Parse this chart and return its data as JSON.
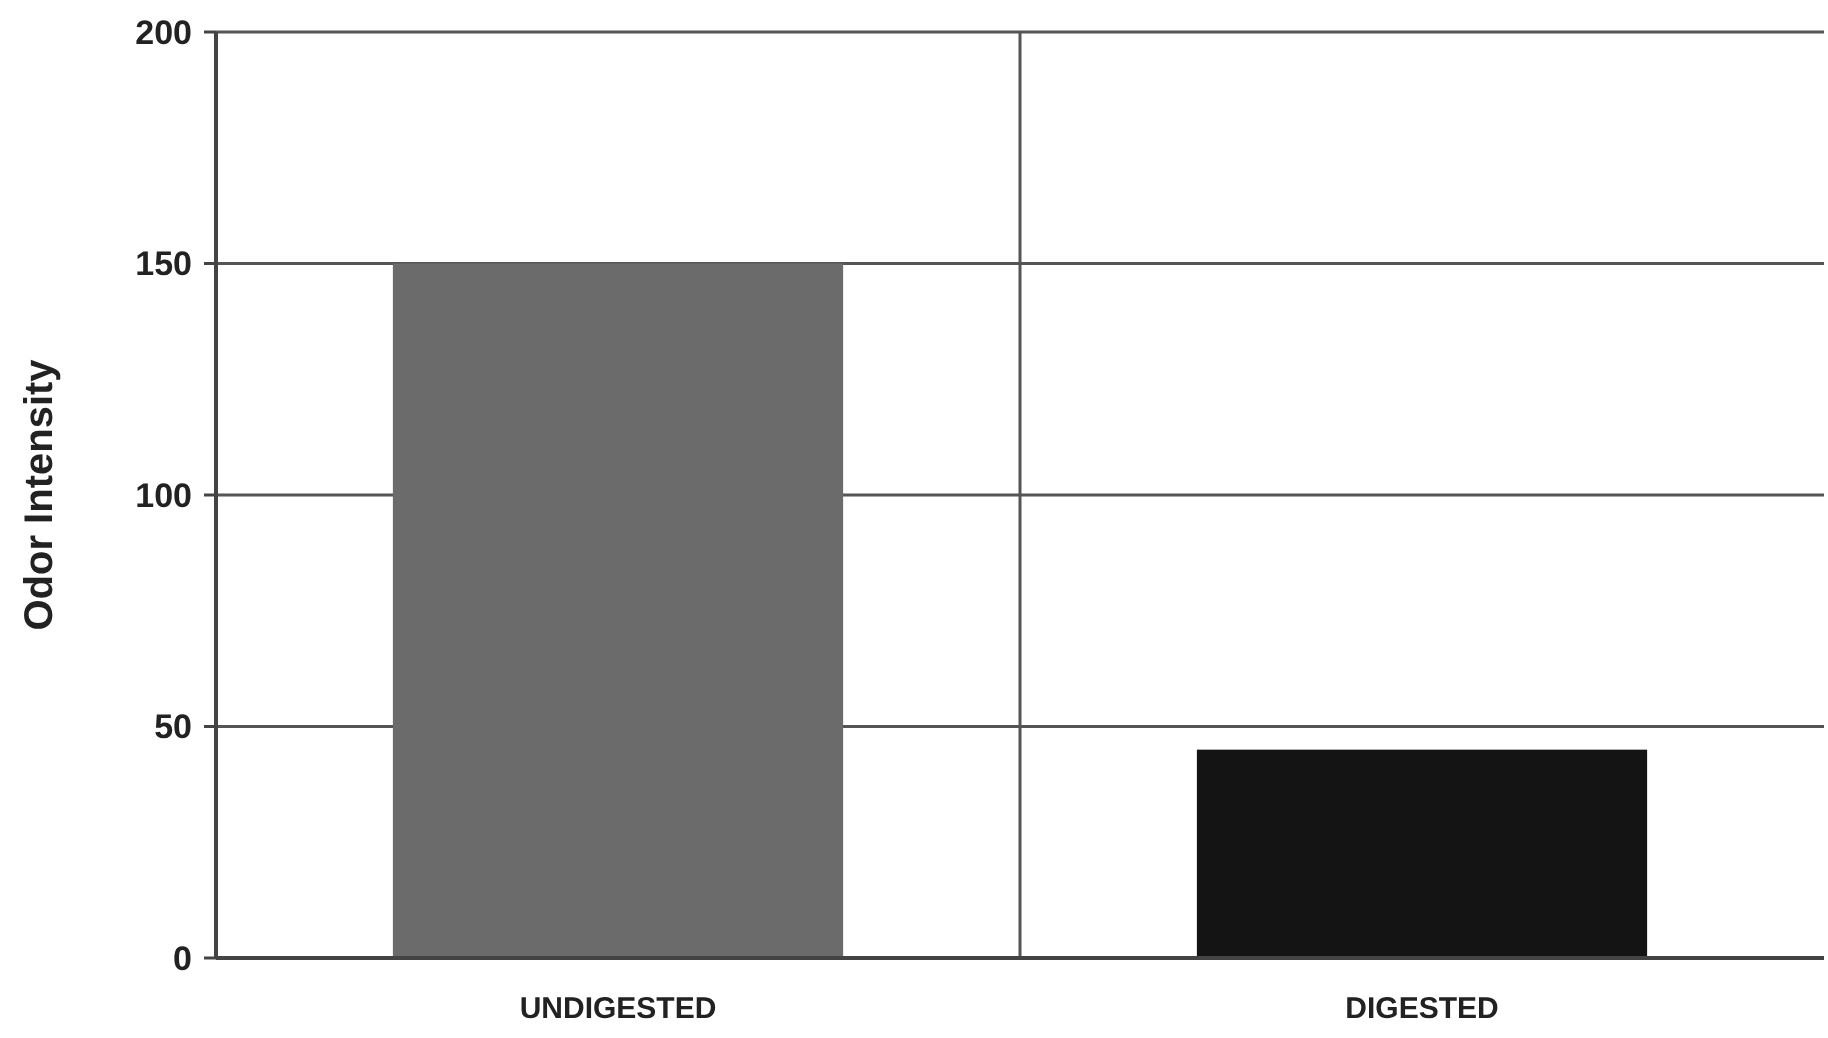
{
  "chart_data": {
    "type": "bar",
    "ylabel": "Odor Intensity",
    "categories": [
      "UNDIGESTED",
      "DIGESTED"
    ],
    "values": [
      150,
      45
    ],
    "colors": [
      "#6b6b6b",
      "#141414"
    ],
    "ylim": [
      0,
      200
    ],
    "yticks": [
      0,
      50,
      100,
      150,
      200
    ],
    "grid": true
  }
}
